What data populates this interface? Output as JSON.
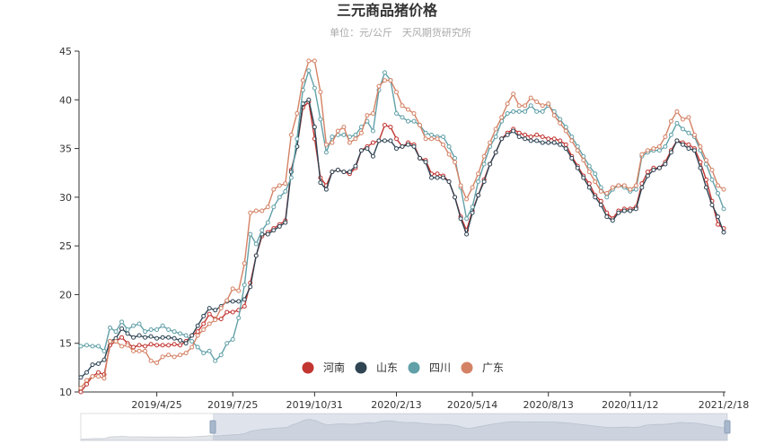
{
  "chart_data": {
    "type": "line",
    "title": "三元商品猪价格",
    "subtitle": "单位：元/公斤　天风期货研究所",
    "xlabel": "",
    "ylabel": "",
    "ylim": [
      10,
      45
    ],
    "yticks": [
      10,
      15,
      20,
      25,
      30,
      35,
      40,
      45
    ],
    "xtick_labels": [
      "2019/4/25",
      "2019/7/25",
      "2019/10/31",
      "2020/2/13",
      "2020/5/14",
      "2020/8/13",
      "2020/11/12",
      "2021/2/18"
    ],
    "legend_position": "bottom-center-inside",
    "has_datazoom": true,
    "series": [
      {
        "name": "河南",
        "color": "#c23531",
        "values": [
          10.0,
          10.8,
          11.6,
          12.0,
          11.8,
          14.8,
          15.2,
          15.6,
          15.0,
          14.6,
          14.8,
          14.7,
          14.9,
          14.8,
          14.8,
          14.8,
          14.9,
          14.8,
          15.2,
          15.8,
          16.2,
          17.0,
          18.0,
          17.5,
          17.5,
          18.2,
          18.2,
          18.4,
          18.8,
          21.2,
          24.0,
          26.0,
          26.4,
          26.8,
          27.2,
          27.6,
          32.8,
          35.2,
          39.2,
          39.8,
          36.0,
          32.0,
          31.2,
          32.6,
          32.8,
          32.6,
          32.4,
          33.0,
          34.8,
          35.2,
          35.6,
          35.8,
          37.4,
          37.2,
          36.0,
          35.2,
          35.6,
          35.4,
          34.0,
          33.8,
          32.4,
          32.4,
          32.2,
          31.6,
          30.0,
          28.0,
          26.6,
          28.6,
          30.2,
          31.8,
          33.4,
          34.6,
          36.0,
          36.6,
          37.0,
          36.6,
          36.4,
          36.2,
          36.4,
          36.2,
          36.0,
          36.0,
          35.8,
          35.4,
          34.2,
          33.2,
          32.2,
          31.4,
          30.2,
          29.6,
          28.4,
          27.8,
          28.6,
          28.8,
          28.8,
          29.0,
          31.4,
          32.6,
          33.0,
          33.0,
          33.6,
          34.8,
          35.8,
          35.6,
          35.4,
          35.0,
          33.6,
          31.8,
          29.6,
          27.2,
          26.8
        ]
      },
      {
        "name": "山东",
        "color": "#2f4554",
        "values": [
          11.5,
          12.0,
          12.8,
          12.9,
          13.3,
          15.2,
          15.5,
          16.5,
          16.0,
          15.6,
          15.8,
          15.6,
          15.7,
          15.5,
          15.6,
          15.6,
          15.5,
          15.3,
          15.0,
          15.8,
          16.8,
          17.8,
          18.6,
          18.4,
          18.8,
          19.3,
          19.3,
          19.3,
          19.5,
          20.8,
          24.0,
          26.2,
          26.2,
          26.6,
          27.0,
          27.4,
          32.6,
          35.2,
          39.6,
          40.0,
          37.2,
          31.5,
          30.8,
          32.6,
          32.8,
          32.6,
          32.6,
          33.2,
          34.8,
          35.0,
          34.2,
          35.8,
          35.8,
          35.8,
          35.0,
          35.2,
          35.4,
          35.2,
          34.0,
          33.6,
          32.0,
          32.0,
          32.0,
          31.6,
          30.0,
          27.8,
          26.2,
          28.4,
          30.2,
          31.6,
          33.4,
          34.6,
          36.0,
          36.4,
          36.8,
          36.2,
          36.0,
          35.8,
          35.8,
          35.6,
          35.6,
          35.6,
          35.4,
          35.0,
          34.0,
          33.0,
          32.0,
          31.0,
          30.0,
          29.2,
          28.0,
          27.6,
          28.4,
          28.6,
          28.6,
          28.8,
          31.0,
          32.2,
          32.8,
          33.0,
          33.4,
          34.6,
          35.8,
          35.4,
          35.0,
          34.8,
          33.0,
          31.0,
          29.2,
          28.0,
          26.4
        ]
      },
      {
        "name": "四川",
        "color": "#61a0a8",
        "values": [
          14.7,
          14.8,
          14.7,
          14.7,
          14.2,
          16.6,
          16.2,
          17.2,
          16.4,
          16.8,
          17.0,
          16.2,
          16.4,
          16.4,
          16.8,
          16.4,
          16.2,
          16.0,
          15.8,
          15.2,
          14.6,
          14.0,
          14.2,
          13.2,
          13.8,
          15.0,
          15.4,
          17.6,
          21.0,
          26.2,
          25.2,
          26.6,
          27.4,
          29.0,
          30.0,
          30.6,
          32.0,
          36.0,
          41.0,
          43.0,
          41.2,
          38.0,
          34.6,
          36.2,
          36.4,
          36.4,
          36.2,
          36.4,
          37.2,
          37.8,
          36.8,
          41.0,
          42.8,
          42.0,
          38.6,
          38.2,
          37.8,
          37.8,
          37.4,
          36.6,
          36.4,
          36.2,
          36.2,
          35.2,
          34.0,
          31.0,
          27.8,
          29.0,
          31.6,
          33.4,
          35.2,
          36.2,
          37.8,
          38.6,
          38.8,
          38.8,
          38.8,
          39.4,
          38.8,
          38.8,
          39.4,
          38.8,
          38.0,
          37.2,
          36.2,
          35.2,
          34.2,
          33.2,
          32.4,
          31.0,
          30.0,
          30.8,
          31.2,
          31.0,
          30.6,
          30.8,
          34.2,
          34.6,
          34.8,
          34.8,
          35.2,
          36.4,
          37.6,
          37.0,
          36.6,
          36.2,
          34.8,
          33.4,
          31.8,
          30.4,
          28.8
        ]
      },
      {
        "name": "广东",
        "color": "#d48265",
        "values": [
          10.4,
          11.2,
          11.6,
          11.6,
          11.4,
          15.2,
          15.2,
          14.7,
          14.8,
          14.2,
          14.2,
          14.2,
          13.2,
          13.0,
          13.6,
          13.8,
          13.6,
          13.8,
          14.0,
          14.6,
          15.8,
          16.4,
          17.0,
          17.4,
          18.6,
          19.4,
          20.6,
          20.4,
          23.2,
          28.4,
          28.6,
          28.6,
          29.0,
          30.8,
          31.2,
          31.4,
          36.4,
          38.6,
          42.0,
          44.0,
          44.0,
          40.8,
          35.4,
          35.6,
          36.8,
          37.2,
          35.6,
          36.0,
          36.6,
          38.4,
          38.6,
          41.4,
          42.0,
          42.0,
          40.8,
          39.4,
          39.0,
          38.6,
          37.4,
          36.0,
          36.0,
          36.0,
          35.4,
          34.4,
          33.6,
          31.2,
          29.8,
          31.0,
          32.4,
          34.2,
          35.6,
          37.0,
          38.2,
          39.6,
          40.6,
          39.4,
          39.4,
          40.2,
          39.8,
          39.4,
          39.6,
          38.4,
          37.6,
          36.8,
          35.8,
          34.8,
          33.8,
          32.6,
          31.6,
          30.6,
          30.4,
          31.0,
          31.2,
          31.2,
          30.8,
          31.2,
          34.4,
          34.8,
          35.0,
          35.2,
          36.2,
          37.8,
          38.8,
          38.0,
          38.2,
          36.4,
          35.2,
          33.8,
          32.8,
          31.2,
          30.8
        ]
      }
    ]
  }
}
